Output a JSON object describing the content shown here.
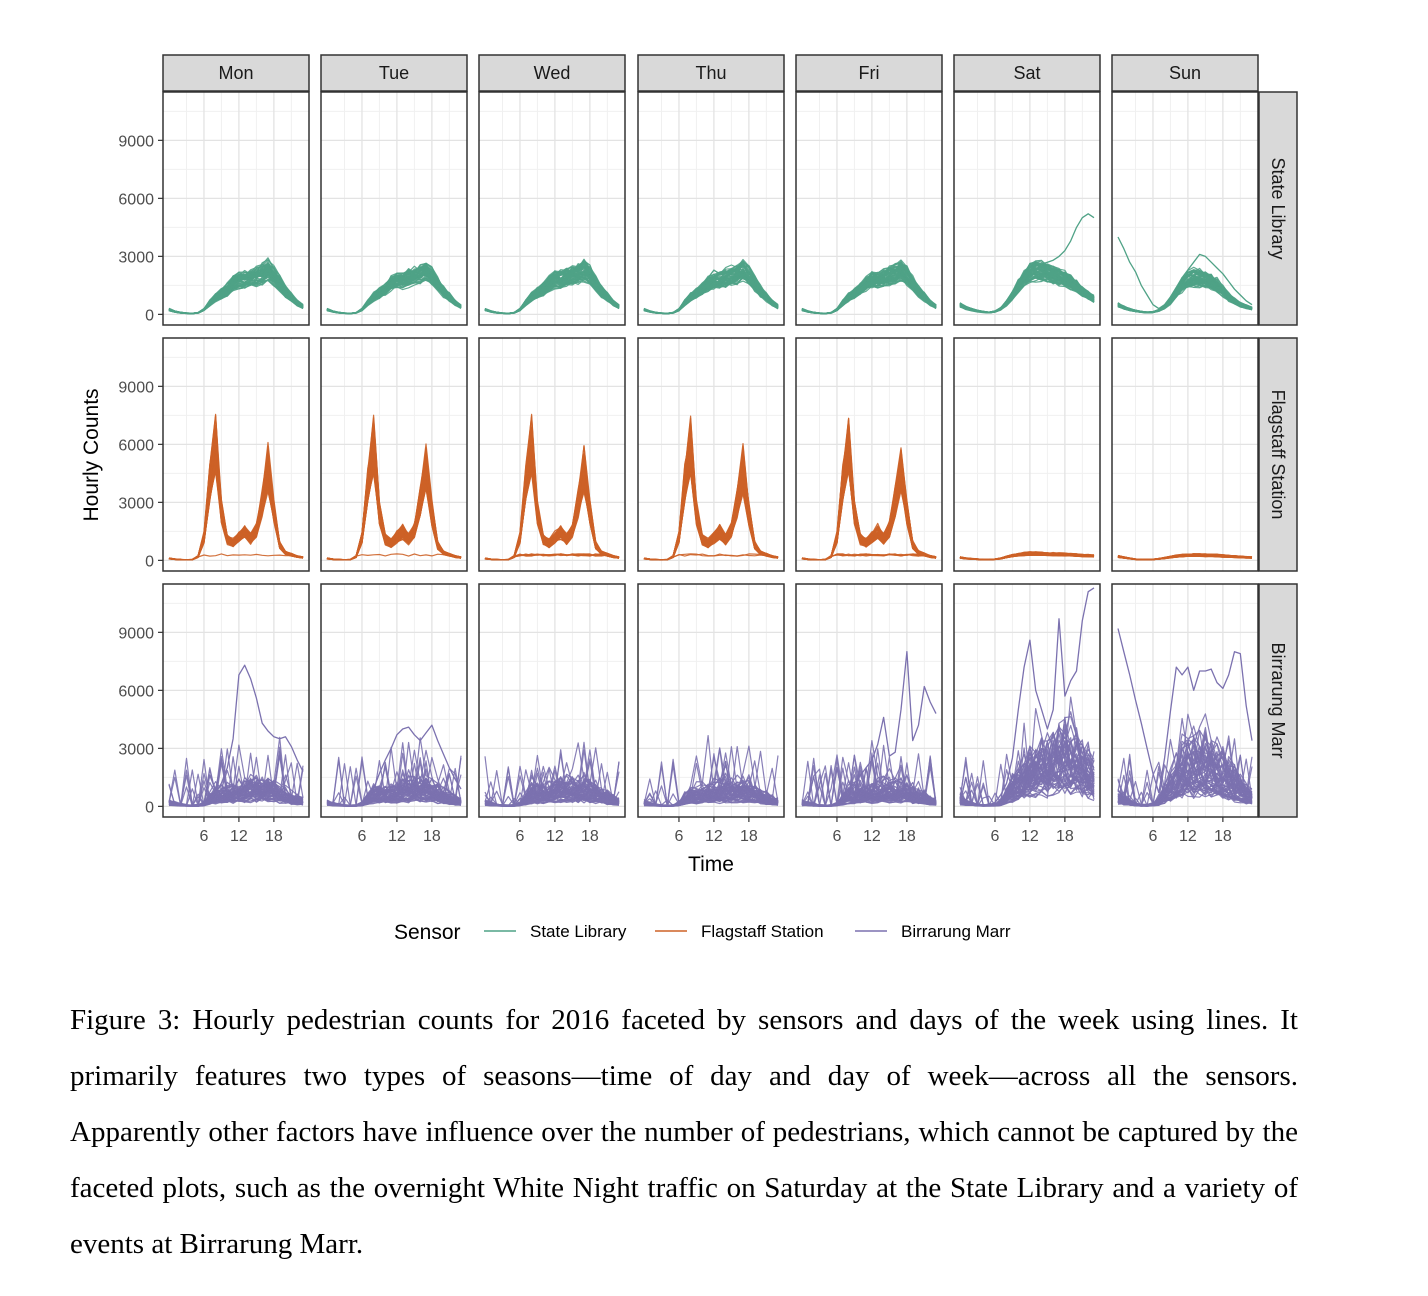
{
  "chart_data": {
    "type": "line",
    "facet_layout": "grid",
    "days": [
      "Mon",
      "Tue",
      "Wed",
      "Thu",
      "Fri",
      "Sat",
      "Sun"
    ],
    "sensors": [
      "State Library",
      "Flagstaff Station",
      "Birrarung Marr"
    ],
    "xlabel": "Time",
    "ylabel": "Hourly Counts",
    "x_ticks": [
      6,
      12,
      18
    ],
    "y_ticks": [
      0,
      3000,
      6000,
      9000
    ],
    "xlim": [
      0,
      23
    ],
    "ylim": [
      -550,
      11500
    ],
    "grid": true,
    "legend": {
      "title": "Sensor",
      "position": "bottom",
      "entries": [
        {
          "name": "State Library",
          "color": "#4FA286"
        },
        {
          "name": "Flagstaff Station",
          "color": "#CD6227"
        },
        {
          "name": "Birrarung Marr",
          "color": "#7B71AF"
        }
      ]
    },
    "representative_profiles": {
      "x": [
        0,
        1,
        2,
        3,
        4,
        5,
        6,
        7,
        8,
        9,
        10,
        11,
        12,
        13,
        14,
        15,
        16,
        17,
        18,
        19,
        20,
        21,
        22,
        23
      ],
      "State Library": {
        "weekday": [
          250,
          150,
          90,
          60,
          50,
          80,
          250,
          600,
          900,
          1100,
          1300,
          1600,
          1800,
          1800,
          1900,
          2000,
          2100,
          2300,
          2000,
          1600,
          1200,
          900,
          600,
          400
        ],
        "Sat": [
          500,
          350,
          250,
          180,
          130,
          100,
          150,
          300,
          600,
          1000,
          1500,
          1900,
          2200,
          2300,
          2300,
          2200,
          2100,
          2000,
          1900,
          1700,
          1500,
          1200,
          1000,
          800
        ],
        "Sun": [
          500,
          350,
          250,
          180,
          130,
          100,
          120,
          200,
          400,
          700,
          1100,
          1500,
          1800,
          1900,
          1900,
          1800,
          1700,
          1500,
          1200,
          900,
          700,
          500,
          400,
          300
        ]
      },
      "Flagstaff Station": {
        "weekday": [
          100,
          60,
          40,
          30,
          40,
          200,
          1200,
          4000,
          6000,
          2500,
          1100,
          900,
          1200,
          1500,
          1100,
          1600,
          3000,
          4800,
          2500,
          800,
          400,
          300,
          200,
          150
        ],
        "Sat": [
          150,
          100,
          80,
          60,
          40,
          40,
          60,
          100,
          180,
          250,
          300,
          330,
          350,
          350,
          340,
          330,
          320,
          310,
          300,
          290,
          280,
          260,
          250,
          230
        ],
        "Sun": [
          200,
          150,
          100,
          60,
          40,
          40,
          50,
          80,
          120,
          170,
          220,
          250,
          270,
          280,
          280,
          270,
          260,
          250,
          230,
          210,
          200,
          180,
          160,
          150
        ]
      },
      "Birrarung Marr": {
        "weekday": [
          150,
          100,
          60,
          40,
          30,
          40,
          100,
          300,
          500,
          500,
          500,
          550,
          600,
          650,
          700,
          700,
          650,
          700,
          650,
          550,
          450,
          350,
          250,
          200
        ],
        "Sat": [
          300,
          150,
          100,
          60,
          40,
          40,
          60,
          150,
          400,
          700,
          900,
          1100,
          1300,
          1500,
          1600,
          1700,
          1800,
          1900,
          1900,
          1800,
          1700,
          1500,
          1300,
          1100
        ],
        "Sun": [
          400,
          250,
          150,
          80,
          50,
          40,
          80,
          200,
          500,
          800,
          1100,
          1400,
          1600,
          1700,
          1700,
          1700,
          1600,
          1500,
          1300,
          1100,
          900,
          700,
          500,
          400
        ]
      }
    },
    "notable_series": [
      {
        "sensor": "State Library",
        "day": "Sat",
        "values": [
          400,
          250,
          180,
          120,
          90,
          80,
          120,
          300,
          600,
          1000,
          1500,
          1900,
          2300,
          2500,
          2600,
          2700,
          2800,
          3000,
          3300,
          3800,
          4500,
          5000,
          5200,
          5000
        ]
      },
      {
        "sensor": "State Library",
        "day": "Sun",
        "values": [
          4000,
          3400,
          2700,
          2200,
          1500,
          1000,
          500,
          300,
          500,
          900,
          1400,
          1900,
          2300,
          2700,
          3100,
          3000,
          2700,
          2400,
          2100,
          1700,
          1300,
          1000,
          700,
          500
        ]
      },
      {
        "sensor": "Birrarung Marr",
        "day": "Mon",
        "values": [
          100,
          80,
          60,
          50,
          40,
          50,
          100,
          300,
          700,
          1200,
          2000,
          3500,
          6800,
          7300,
          6600,
          5600,
          4300,
          3900,
          3600,
          3500,
          3600,
          3100,
          2400,
          1800
        ]
      },
      {
        "sensor": "Birrarung Marr",
        "day": "Tue",
        "values": [
          100,
          80,
          60,
          50,
          40,
          50,
          150,
          500,
          900,
          1700,
          2400,
          3000,
          3700,
          4000,
          4100,
          3700,
          3400,
          3800,
          4200,
          3400,
          2700,
          2000,
          1400,
          900
        ]
      },
      {
        "sensor": "Birrarung Marr",
        "day": "Fri",
        "values": [
          300,
          150,
          100,
          60,
          50,
          80,
          200,
          500,
          900,
          1200,
          1600,
          2000,
          2400,
          3200,
          4600,
          2600,
          2800,
          5000,
          8000,
          3400,
          4200,
          6200,
          5400,
          4800
        ]
      },
      {
        "sensor": "Birrarung Marr",
        "day": "Sat",
        "values": [
          500,
          200,
          100,
          60,
          50,
          80,
          200,
          600,
          1200,
          2500,
          5000,
          7200,
          8600,
          6000,
          5000,
          4000,
          5000,
          9700,
          5700,
          6500,
          7000,
          9600,
          11100,
          11300
        ]
      },
      {
        "sensor": "Birrarung Marr",
        "day": "Sun",
        "values": [
          9200,
          8000,
          6800,
          5500,
          4300,
          3000,
          1700,
          700,
          2500,
          4900,
          7200,
          6800,
          7200,
          6000,
          7000,
          7000,
          7100,
          6400,
          6100,
          6800,
          8000,
          7900,
          5200,
          3400
        ]
      }
    ]
  },
  "caption": "Figure 3: Hourly pedestrian counts for 2016 faceted by sensors and days of the week using lines. It primarily features two types of seasons—time of day and day of week—across all the sensors. Apparently other factors have influence over the number of pedestrians, which cannot be captured by the faceted plots, such as the overnight White Night traffic on Saturday at the State Library and a variety of events at Birrarung Marr."
}
